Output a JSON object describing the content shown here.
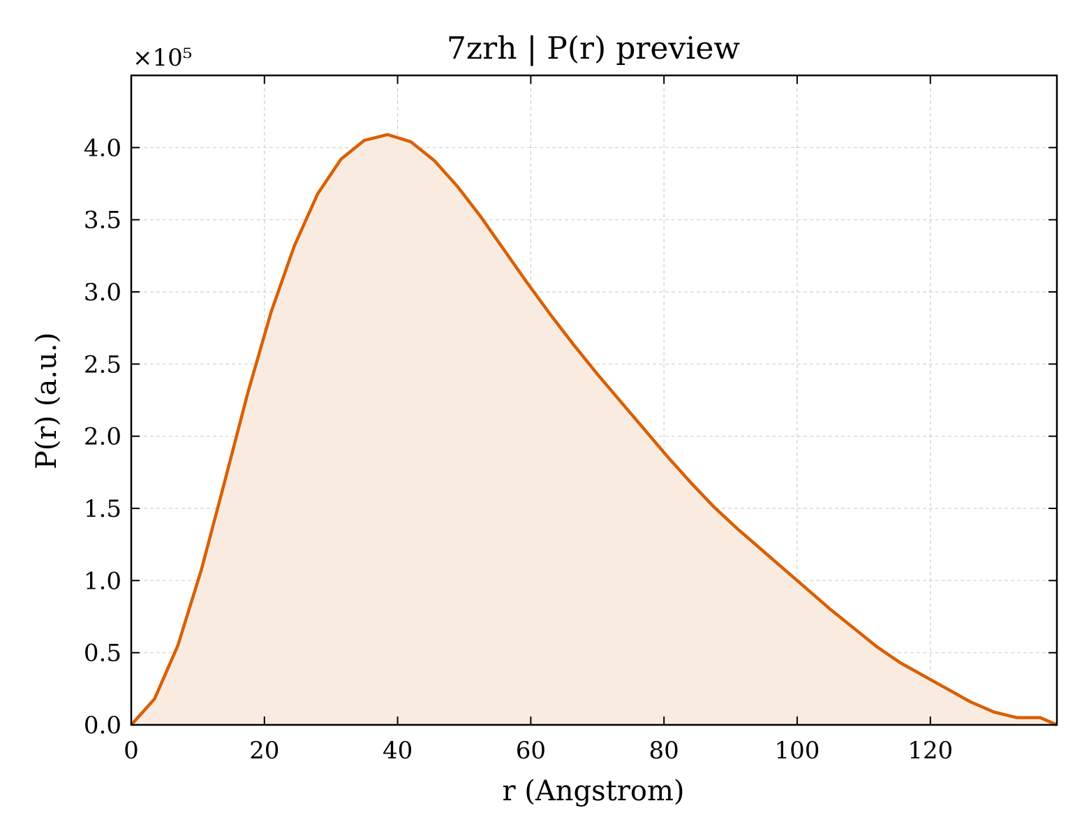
{
  "chart_data": {
    "type": "area",
    "title": "7zrh | P(r) preview",
    "xlabel": "r (Angstrom)",
    "ylabel": "P(r) (a.u.)",
    "y_multiplier_label": "×10⁵",
    "y_scale": 100000,
    "xlim": [
      0,
      139
    ],
    "ylim": [
      0,
      4.5
    ],
    "x_ticks": [
      0,
      20,
      40,
      60,
      80,
      100,
      120
    ],
    "y_ticks": [
      0.0,
      0.5,
      1.0,
      1.5,
      2.0,
      2.5,
      3.0,
      3.5,
      4.0
    ],
    "x_tick_labels": [
      "0",
      "20",
      "40",
      "60",
      "80",
      "100",
      "120"
    ],
    "y_tick_labels": [
      "0.0",
      "0.5",
      "1.0",
      "1.5",
      "2.0",
      "2.5",
      "3.0",
      "3.5",
      "4.0"
    ],
    "grid": true,
    "line_color": "#d95f02",
    "fill_color": "#f9ebe0",
    "series": [
      {
        "x": [
          0,
          3.5,
          7,
          10.5,
          14,
          17.5,
          21,
          24.5,
          28,
          31.5,
          35,
          38.5,
          42,
          45.5,
          49,
          52.5,
          56,
          59.5,
          63,
          66.5,
          70,
          73.5,
          77,
          80.5,
          84,
          87.5,
          91,
          94.5,
          98,
          101.5,
          105,
          108.5,
          112,
          115.5,
          119,
          122.5,
          126,
          129.5,
          133,
          136.5,
          139
        ],
        "values": [
          0.0,
          0.18,
          0.55,
          1.07,
          1.68,
          2.3,
          2.86,
          3.32,
          3.68,
          3.92,
          4.05,
          4.09,
          4.04,
          3.91,
          3.73,
          3.52,
          3.29,
          3.06,
          2.84,
          2.63,
          2.43,
          2.24,
          2.05,
          1.86,
          1.68,
          1.51,
          1.36,
          1.22,
          1.08,
          0.94,
          0.8,
          0.67,
          0.54,
          0.43,
          0.34,
          0.25,
          0.16,
          0.09,
          0.05,
          0.05,
          0.0
        ]
      }
    ]
  }
}
